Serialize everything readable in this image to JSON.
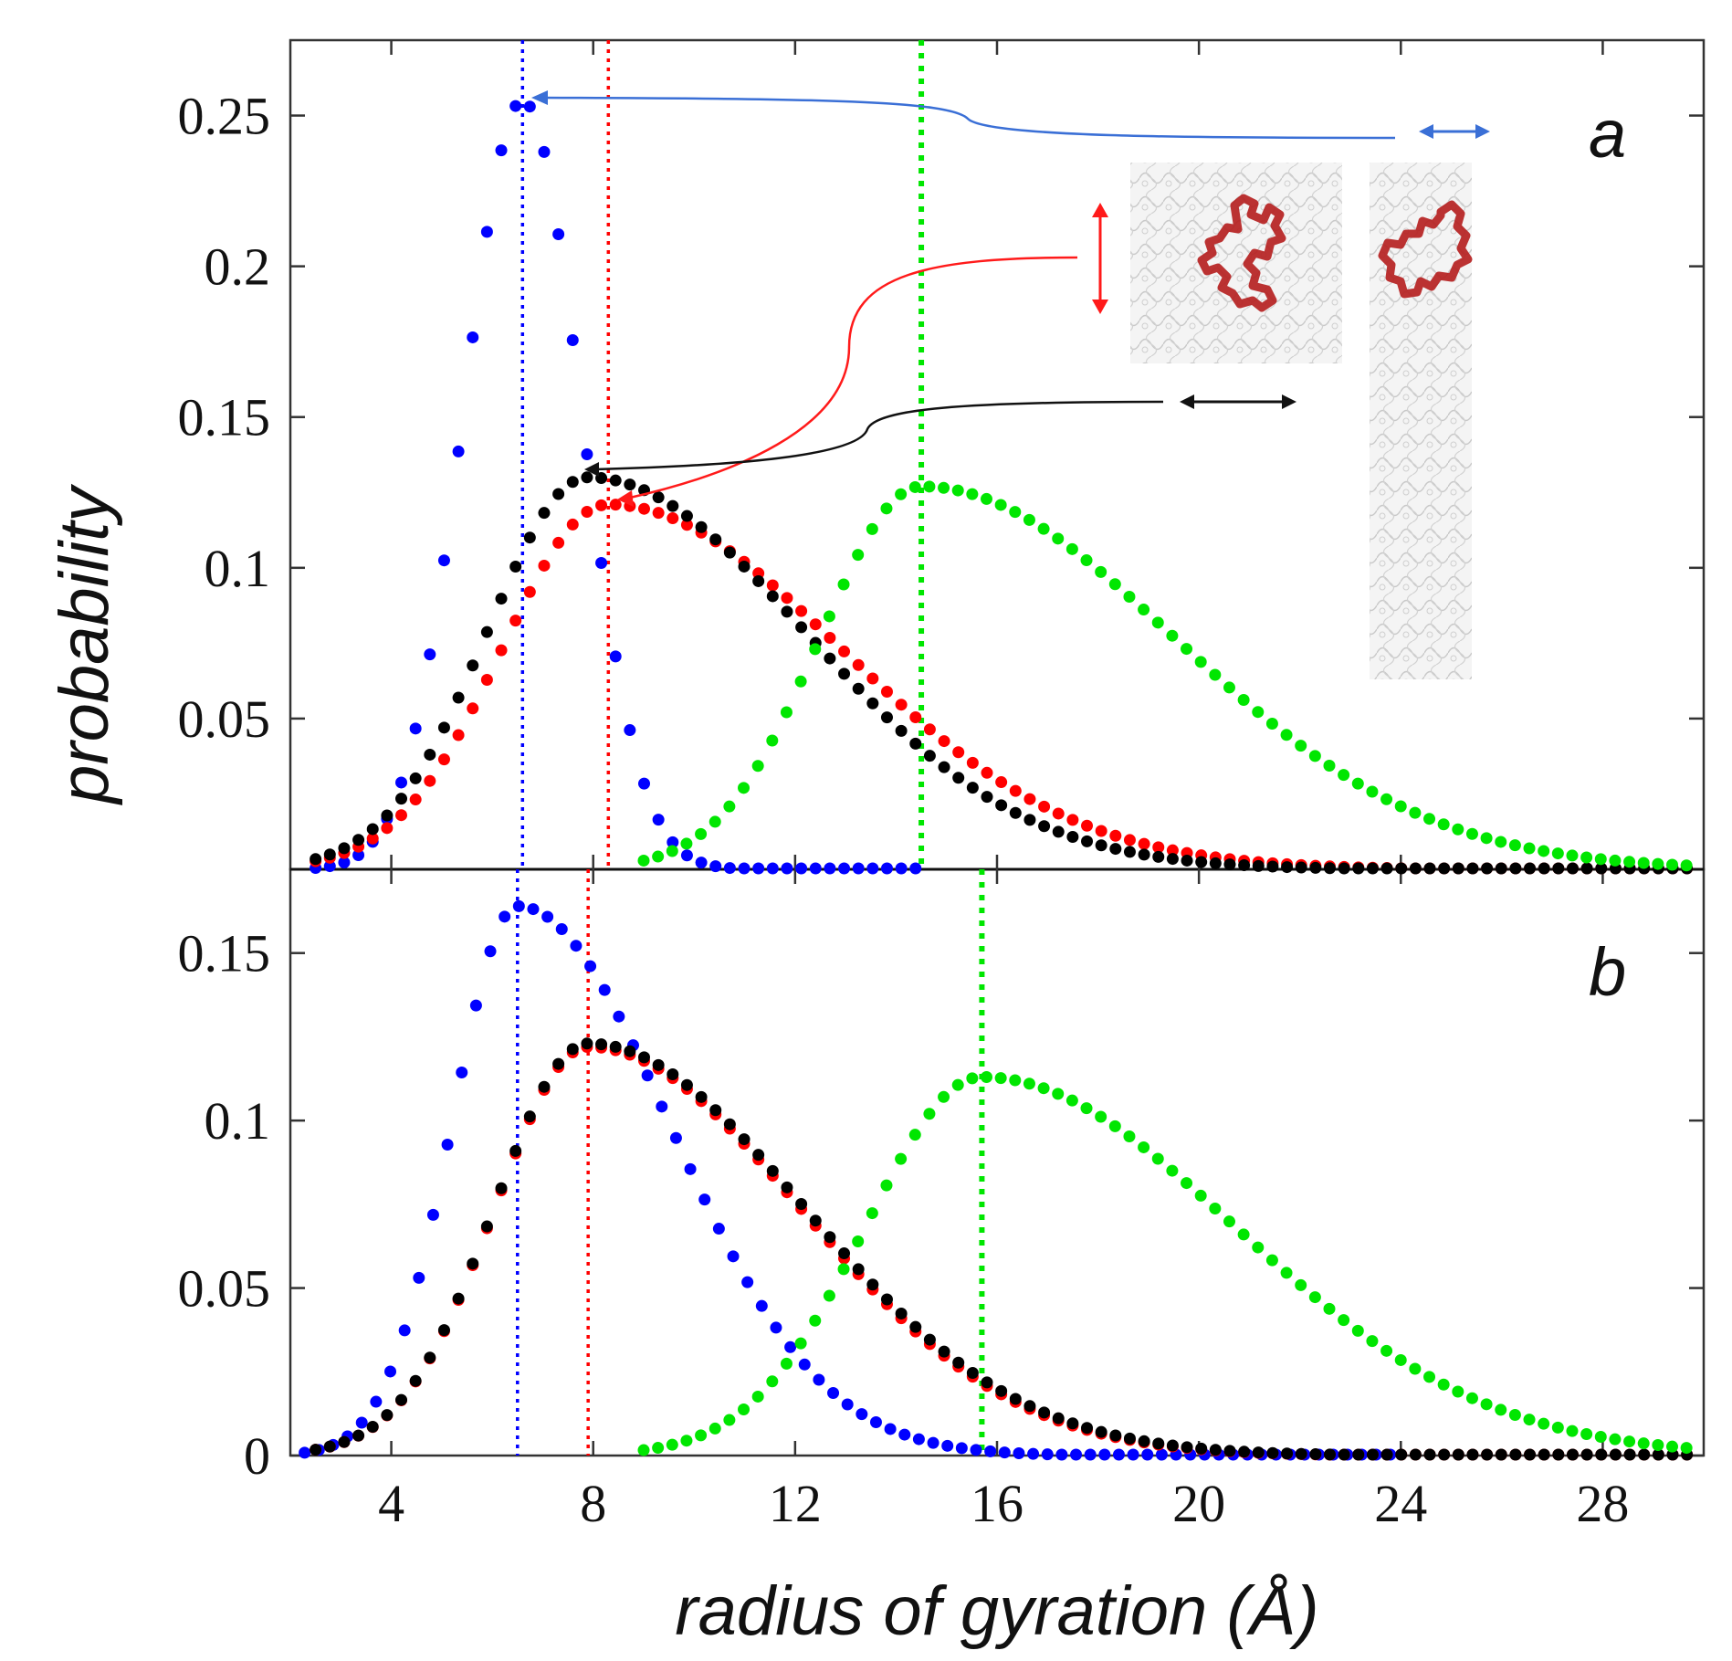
{
  "chart_data": [
    {
      "panel": "a",
      "type": "scatter",
      "xlabel": "radius of gyration (Å)",
      "ylabel": "probability",
      "xlim": [
        2,
        30
      ],
      "ylim": [
        0,
        0.275
      ],
      "yticks": [
        "0.05",
        "0.1",
        "0.15",
        "0.2",
        "0.25"
      ],
      "series": [
        {
          "name": "blue",
          "color": "#0000ff",
          "peak_x": 6.6,
          "peak_y": 0.255,
          "width_left": 1.15,
          "width_right": 1.15,
          "x_start": 2.5,
          "x_end": 14.5,
          "marker_line_x": 6.6
        },
        {
          "name": "red",
          "color": "#ff0000",
          "peak_x": 8.3,
          "peak_y": 0.121,
          "width_left": 2.1,
          "width_right": 4.6,
          "x_start": 2.5,
          "x_end": 30,
          "marker_line_x": 8.3
        },
        {
          "name": "black",
          "color": "#000000",
          "peak_x": 7.9,
          "peak_y": 0.13,
          "width_left": 2.0,
          "width_right": 4.3,
          "x_start": 2.5,
          "x_end": 30
        },
        {
          "name": "green",
          "color": "#00e600",
          "peak_x": 14.5,
          "peak_y": 0.127,
          "width_left": 2.0,
          "width_right": 5.0,
          "x_start": 9.0,
          "x_end": 30,
          "marker_line_x": 14.5
        }
      ],
      "annotations": [
        "blue arrow to blue peak",
        "red arrow to red peak",
        "black arrow to black peak",
        "inset: polymer in bulk box",
        "inset: polymer in slab"
      ]
    },
    {
      "panel": "b",
      "type": "scatter",
      "xlabel": "radius of gyration (Å)",
      "ylabel": "probability",
      "xlim": [
        2,
        30
      ],
      "ylim": [
        0,
        0.175
      ],
      "xticks": [
        "4",
        "8",
        "12",
        "16",
        "20",
        "24",
        "28"
      ],
      "yticks": [
        "0",
        "0.05",
        "0.1",
        "0.15"
      ],
      "series": [
        {
          "name": "blue",
          "color": "#0000ff",
          "peak_x": 6.5,
          "peak_y": 0.164,
          "width_left": 1.3,
          "width_right": 3.0,
          "x_start": 2.0,
          "x_end": 24,
          "marker_line_x": 6.5
        },
        {
          "name": "red",
          "color": "#ff0000",
          "peak_x": 7.9,
          "peak_y": 0.122,
          "width_left": 1.85,
          "width_right": 4.2,
          "x_start": 2.5,
          "x_end": 30,
          "marker_line_x": 7.9
        },
        {
          "name": "black",
          "color": "#000000",
          "peak_x": 7.9,
          "peak_y": 0.123,
          "width_left": 1.85,
          "width_right": 4.25,
          "x_start": 2.5,
          "x_end": 30
        },
        {
          "name": "green",
          "color": "#00e600",
          "peak_x": 15.7,
          "peak_y": 0.113,
          "width_left": 2.3,
          "width_right": 5.0,
          "x_start": 9.0,
          "x_end": 30,
          "marker_line_x": 15.7
        }
      ]
    }
  ],
  "labels": {
    "ylabel": "probability",
    "xlabel": "radius of gyration (Å)",
    "panel_a": "a",
    "panel_b": "b"
  }
}
